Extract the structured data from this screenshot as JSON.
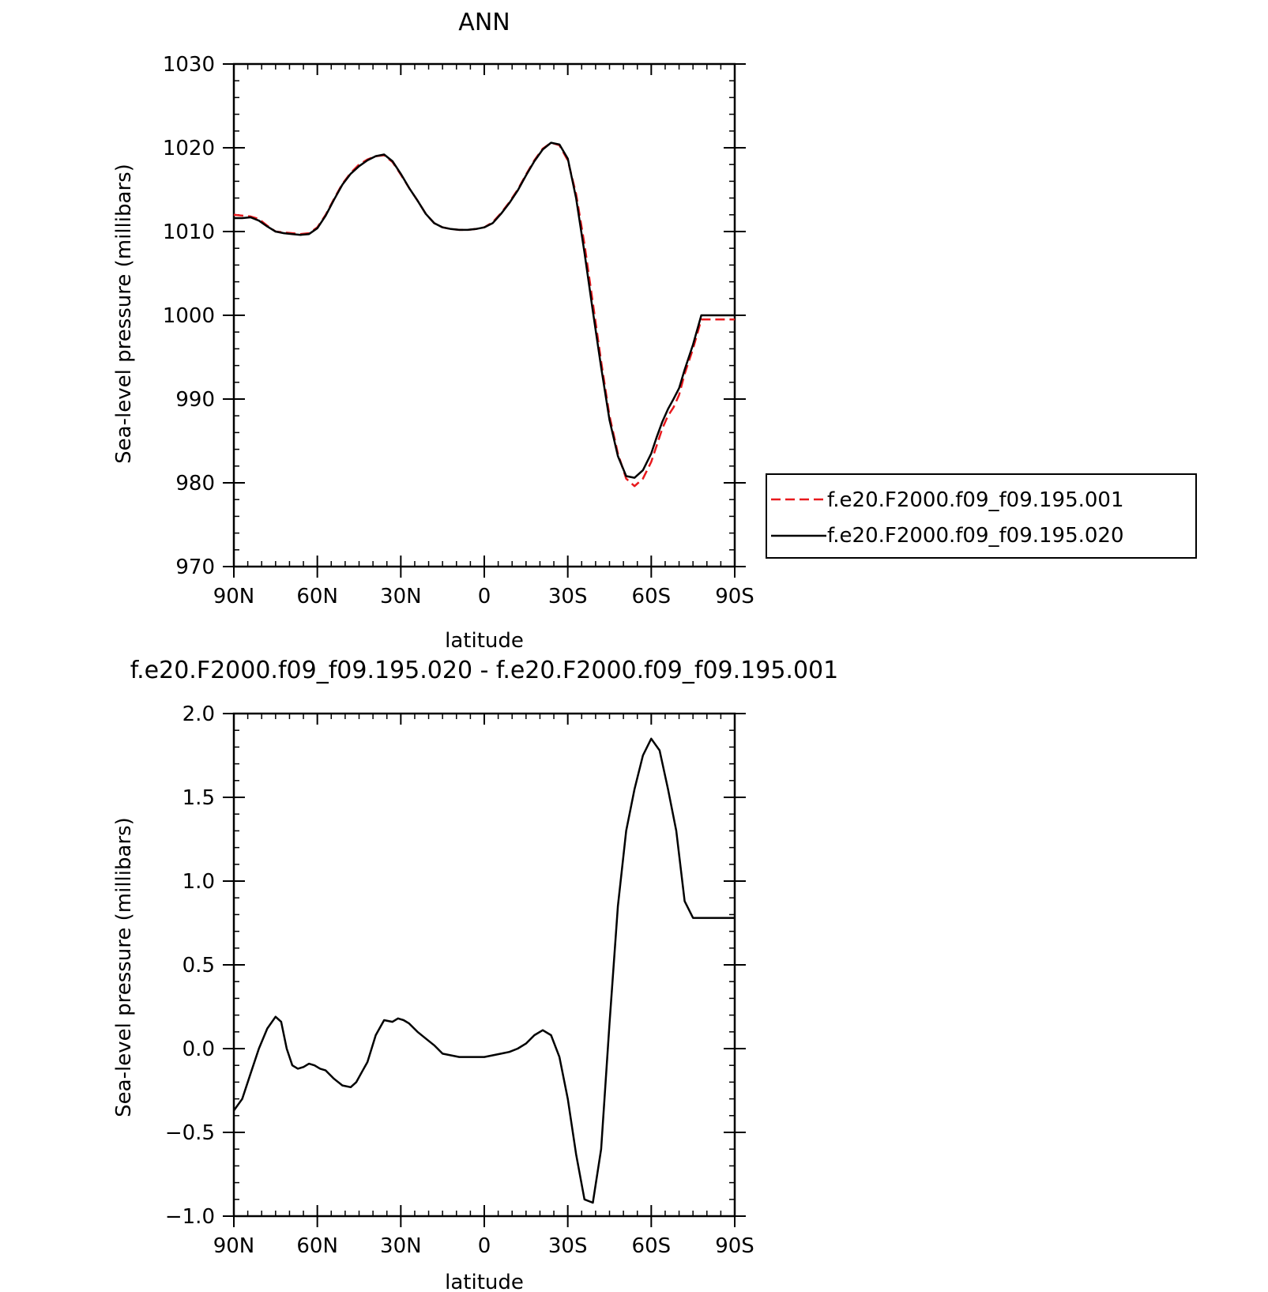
{
  "chart_data": [
    {
      "type": "line",
      "title": "ANN",
      "xlabel": "latitude",
      "ylabel": "Sea-level pressure (millibars)",
      "xlim": [
        90,
        -90
      ],
      "ylim": [
        970,
        1030
      ],
      "x_ticks": [
        90,
        60,
        30,
        0,
        -30,
        -60,
        -90
      ],
      "x_tick_labels": [
        "90N",
        "60N",
        "30N",
        "0",
        "30S",
        "60S",
        "90S"
      ],
      "y_ticks": [
        970,
        980,
        990,
        1000,
        1010,
        1020,
        1030
      ],
      "y_tick_labels": [
        "970",
        "980",
        "990",
        "1000",
        "1010",
        "1020",
        "1030"
      ],
      "legend_position": "right",
      "grid": false,
      "series": [
        {
          "name": "f.e20.F2000.f09_f09.195.001",
          "color": "#e8191d",
          "dash": "dashed",
          "x": [
            90,
            87,
            84,
            81,
            78,
            75,
            72,
            69,
            66,
            63,
            60,
            57,
            54,
            51,
            48,
            45,
            42,
            39,
            36,
            33,
            30,
            27,
            24,
            21,
            18,
            15,
            12,
            9,
            6,
            3,
            0,
            -3,
            -6,
            -9,
            -12,
            -15,
            -18,
            -21,
            -24,
            -27,
            -30,
            -33,
            -36,
            -39,
            -42,
            -45,
            -48,
            -51,
            -54,
            -57,
            -60,
            -62,
            -64,
            -66,
            -68,
            -70,
            -72,
            -75,
            -78,
            -81,
            -84,
            -87,
            -90
          ],
          "values": [
            1012.0,
            1011.9,
            1011.8,
            1011.5,
            1010.7,
            1010.0,
            1009.9,
            1009.8,
            1009.7,
            1009.8,
            1010.5,
            1012.0,
            1013.9,
            1015.7,
            1017.0,
            1018.0,
            1018.6,
            1019.0,
            1019.1,
            1018.3,
            1016.8,
            1015.2,
            1013.7,
            1012.1,
            1011.0,
            1010.5,
            1010.3,
            1010.2,
            1010.2,
            1010.3,
            1010.5,
            1011.1,
            1012.2,
            1013.5,
            1015.0,
            1016.8,
            1018.5,
            1019.9,
            1020.6,
            1020.3,
            1018.5,
            1014.5,
            1008.5,
            1001.5,
            994.5,
            988.0,
            983.5,
            980.5,
            979.6,
            980.5,
            982.5,
            984.5,
            986.5,
            988.0,
            989.0,
            990.5,
            993.0,
            996.0,
            999.5,
            999.5,
            999.5,
            999.5,
            999.5
          ]
        },
        {
          "name": "f.e20.F2000.f09_f09.195.020",
          "color": "#000000",
          "dash": "solid",
          "x": [
            90,
            87,
            84,
            81,
            78,
            75,
            72,
            69,
            66,
            63,
            60,
            57,
            54,
            51,
            48,
            45,
            42,
            39,
            36,
            33,
            30,
            27,
            24,
            21,
            18,
            15,
            12,
            9,
            6,
            3,
            0,
            -3,
            -6,
            -9,
            -12,
            -15,
            -18,
            -21,
            -24,
            -27,
            -30,
            -33,
            -36,
            -39,
            -42,
            -45,
            -48,
            -51,
            -54,
            -57,
            -60,
            -62,
            -64,
            -66,
            -68,
            -70,
            -72,
            -75,
            -78,
            -81,
            -84,
            -87,
            -90
          ],
          "values": [
            1011.6,
            1011.6,
            1011.7,
            1011.3,
            1010.6,
            1010.0,
            1009.8,
            1009.7,
            1009.6,
            1009.7,
            1010.4,
            1011.9,
            1013.8,
            1015.6,
            1016.9,
            1017.8,
            1018.5,
            1019.0,
            1019.2,
            1018.4,
            1016.9,
            1015.2,
            1013.7,
            1012.1,
            1011.0,
            1010.5,
            1010.3,
            1010.2,
            1010.2,
            1010.3,
            1010.5,
            1011.0,
            1012.1,
            1013.4,
            1014.9,
            1016.7,
            1018.4,
            1019.8,
            1020.6,
            1020.4,
            1018.7,
            1014.0,
            1007.5,
            1000.5,
            993.8,
            987.5,
            983.2,
            980.8,
            980.6,
            981.5,
            983.5,
            985.5,
            987.3,
            988.8,
            990.0,
            991.3,
            993.5,
            996.5,
            1000.0,
            1000.0,
            1000.0,
            1000.0,
            1000.0
          ]
        }
      ]
    },
    {
      "type": "line",
      "title": "f.e20.F2000.f09_f09.195.020 - f.e20.F2000.f09_f09.195.001",
      "xlabel": "latitude",
      "ylabel": "Sea-level pressure (millibars)",
      "xlim": [
        90,
        -90
      ],
      "ylim": [
        -1.0,
        2.0
      ],
      "x_ticks": [
        90,
        60,
        30,
        0,
        -30,
        -60,
        -90
      ],
      "x_tick_labels": [
        "90N",
        "60N",
        "30N",
        "0",
        "30S",
        "60S",
        "90S"
      ],
      "y_ticks": [
        -1.0,
        -0.5,
        0.0,
        0.5,
        1.0,
        1.5,
        2.0
      ],
      "y_tick_labels": [
        "−1.0",
        "−0.5",
        "0.0",
        "0.5",
        "1.0",
        "1.5",
        "2.0"
      ],
      "grid": false,
      "series": [
        {
          "color": "#000000",
          "dash": "solid",
          "x": [
            90,
            87,
            84,
            81,
            78,
            75,
            73,
            71,
            69,
            67,
            65,
            63,
            61,
            59,
            57,
            54,
            51,
            48,
            46,
            44,
            42,
            39,
            36,
            33,
            31,
            29,
            27,
            24,
            21,
            18,
            15,
            12,
            9,
            6,
            3,
            0,
            -3,
            -6,
            -9,
            -12,
            -15,
            -18,
            -21,
            -24,
            -27,
            -30,
            -33,
            -36,
            -39,
            -42,
            -45,
            -48,
            -51,
            -54,
            -57,
            -60,
            -63,
            -66,
            -69,
            -72,
            -75,
            -77,
            -79,
            -81,
            -84,
            -86,
            -88,
            -90
          ],
          "values": [
            -0.37,
            -0.3,
            -0.15,
            0.0,
            0.12,
            0.19,
            0.16,
            0.0,
            -0.1,
            -0.12,
            -0.11,
            -0.09,
            -0.1,
            -0.12,
            -0.13,
            -0.18,
            -0.22,
            -0.23,
            -0.2,
            -0.14,
            -0.08,
            0.08,
            0.17,
            0.16,
            0.18,
            0.17,
            0.15,
            0.1,
            0.06,
            0.02,
            -0.03,
            -0.04,
            -0.05,
            -0.05,
            -0.05,
            -0.05,
            -0.04,
            -0.03,
            -0.02,
            0.0,
            0.03,
            0.08,
            0.11,
            0.08,
            -0.05,
            -0.3,
            -0.63,
            -0.9,
            -0.92,
            -0.6,
            0.15,
            0.85,
            1.3,
            1.55,
            1.75,
            1.85,
            1.78,
            1.55,
            1.3,
            0.88,
            0.78,
            0.78,
            0.78,
            0.78,
            0.78,
            0.78,
            0.78,
            0.78
          ]
        }
      ]
    }
  ]
}
